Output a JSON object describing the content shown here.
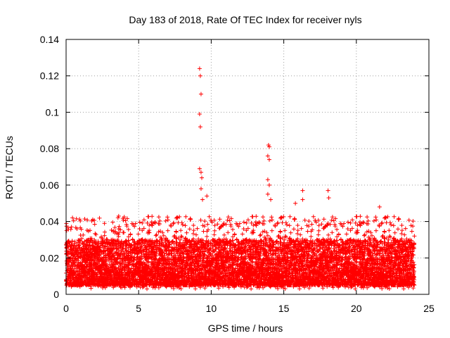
{
  "chart_data": {
    "type": "scatter",
    "title": "Day 183 of 2018, Rate Of TEC Index for receiver nyls",
    "xlabel": "GPS time / hours",
    "ylabel": "ROTI / TECUs",
    "xlim": [
      0,
      25
    ],
    "ylim": [
      0,
      0.14
    ],
    "xticks": [
      0,
      5,
      10,
      15,
      20,
      25
    ],
    "xtick_labels": [
      "0",
      "5",
      "10",
      "15",
      "20",
      "25"
    ],
    "yticks": [
      0,
      0.02,
      0.04,
      0.06,
      0.08,
      0.1,
      0.12,
      0.14
    ],
    "ytick_labels": [
      "0",
      "0.02",
      "0.04",
      "0.06",
      "0.08",
      "0.1",
      "0.12",
      "0.14"
    ],
    "grid": true,
    "marker": "+",
    "series": [
      {
        "name": "ROTI",
        "color": "#ff0000",
        "x_range": [
          0,
          24
        ],
        "typical_band": [
          0.005,
          0.03
        ],
        "notable_points": [
          {
            "x": 9.2,
            "y": 0.124
          },
          {
            "x": 9.25,
            "y": 0.12
          },
          {
            "x": 9.3,
            "y": 0.11
          },
          {
            "x": 9.2,
            "y": 0.099
          },
          {
            "x": 9.25,
            "y": 0.092
          },
          {
            "x": 9.2,
            "y": 0.069
          },
          {
            "x": 9.3,
            "y": 0.067
          },
          {
            "x": 9.35,
            "y": 0.064
          },
          {
            "x": 9.3,
            "y": 0.058
          },
          {
            "x": 9.4,
            "y": 0.052
          },
          {
            "x": 9.7,
            "y": 0.054
          },
          {
            "x": 13.95,
            "y": 0.082
          },
          {
            "x": 14.0,
            "y": 0.081
          },
          {
            "x": 13.9,
            "y": 0.076
          },
          {
            "x": 14.0,
            "y": 0.074
          },
          {
            "x": 13.9,
            "y": 0.063
          },
          {
            "x": 14.0,
            "y": 0.06
          },
          {
            "x": 13.9,
            "y": 0.055
          },
          {
            "x": 14.1,
            "y": 0.052
          },
          {
            "x": 16.3,
            "y": 0.057
          },
          {
            "x": 16.3,
            "y": 0.052
          },
          {
            "x": 15.8,
            "y": 0.05
          },
          {
            "x": 18.05,
            "y": 0.057
          },
          {
            "x": 18.1,
            "y": 0.053
          },
          {
            "x": 21.6,
            "y": 0.048
          },
          {
            "x": 24.0,
            "y": 0.032
          }
        ]
      }
    ]
  }
}
